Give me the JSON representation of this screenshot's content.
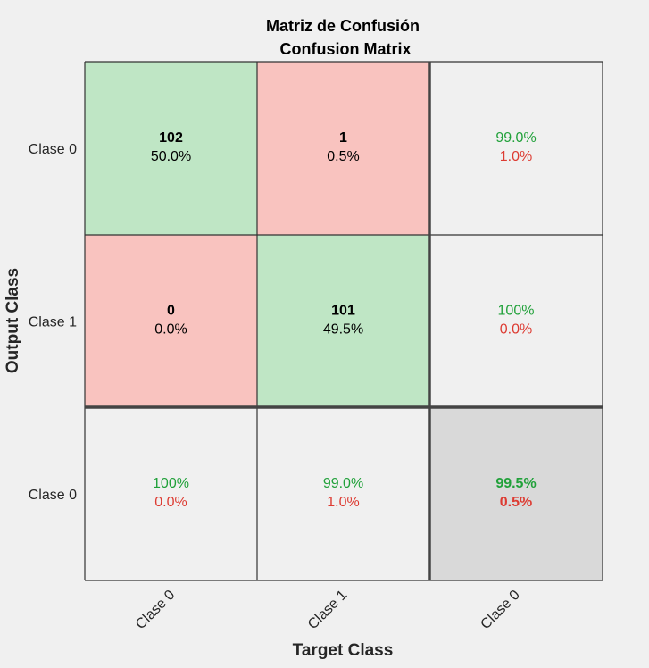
{
  "chart_data": {
    "type": "table",
    "title_line1": "Matriz de Confusión",
    "title_line2": "Confusion Matrix",
    "xlabel": "Target Class",
    "ylabel": "Output Class",
    "row_labels": [
      "Clase 0",
      "Clase 1",
      "Clase 0"
    ],
    "col_labels": [
      "Clase 0",
      "Clase 1",
      "Clase 0"
    ],
    "matrix": [
      [
        {
          "kind": "correct",
          "count": "102",
          "pct": "50.0%"
        },
        {
          "kind": "error",
          "count": "1",
          "pct": "0.5%"
        },
        {
          "kind": "summary",
          "good": "99.0%",
          "bad": "1.0%"
        }
      ],
      [
        {
          "kind": "error",
          "count": "0",
          "pct": "0.0%"
        },
        {
          "kind": "correct",
          "count": "101",
          "pct": "49.5%"
        },
        {
          "kind": "summary",
          "good": "100%",
          "bad": "0.0%"
        }
      ],
      [
        {
          "kind": "summary",
          "good": "100%",
          "bad": "0.0%"
        },
        {
          "kind": "summary",
          "good": "99.0%",
          "bad": "1.0%"
        },
        {
          "kind": "total",
          "good": "99.5%",
          "bad": "0.5%"
        }
      ]
    ]
  },
  "colors": {
    "background": "#f0f0f0",
    "correct_fill": "#bfe6c5",
    "error_fill": "#f9c3bf",
    "summary_fill": "#f0f0f0",
    "total_fill": "#d9d9d9",
    "good_text": "#21a13a",
    "bad_text": "#dd3b32",
    "text": "#000000",
    "label_text": "#262626"
  }
}
